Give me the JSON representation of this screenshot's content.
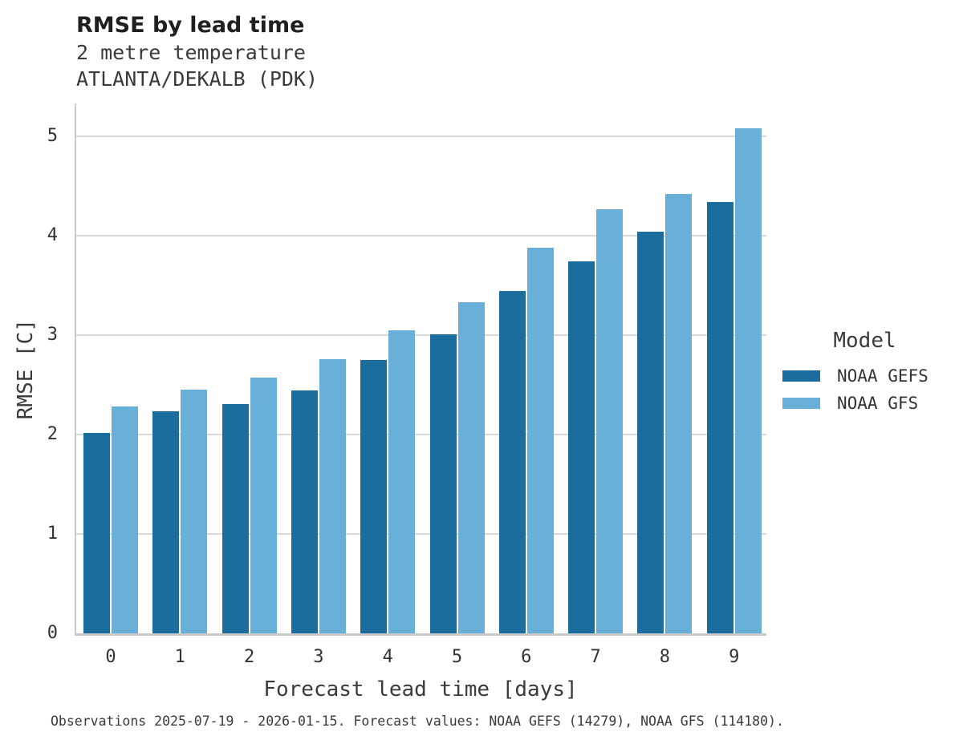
{
  "header": {
    "title": "RMSE by lead time",
    "subtitle_variable": "2 metre temperature",
    "subtitle_station": "ATLANTA/DEKALB (PDK)"
  },
  "chart_data": {
    "type": "bar",
    "title": "RMSE by lead time",
    "subtitle": "2 metre temperature",
    "station": "ATLANTA/DEKALB (PDK)",
    "categories": [
      "0",
      "1",
      "2",
      "3",
      "4",
      "5",
      "6",
      "7",
      "8",
      "9"
    ],
    "series": [
      {
        "name": "NOAA GEFS",
        "color": "#1a6d9c",
        "values": [
          2.02,
          2.23,
          2.31,
          2.44,
          2.75,
          3.01,
          3.44,
          3.74,
          4.04,
          4.34
        ]
      },
      {
        "name": "NOAA GFS",
        "color": "#68b0d9",
        "values": [
          2.28,
          2.45,
          2.57,
          2.76,
          3.05,
          3.33,
          3.88,
          4.27,
          4.42,
          5.08
        ]
      }
    ],
    "xlabel": "Forecast lead time [days]",
    "ylabel": "RMSE [C]",
    "ylim": [
      0,
      5.35
    ],
    "yticks": [
      0,
      1,
      2,
      3,
      4,
      5
    ],
    "grid": "horizontal",
    "gridline_color": "#d9d9d9",
    "axis_color": "#c9c9c9",
    "legend_title": "Model",
    "legend_position": "right-middle"
  },
  "footer": {
    "note": "Observations 2025-07-19 - 2026-01-15. Forecast values: NOAA GEFS (14279), NOAA GFS (114180)."
  }
}
